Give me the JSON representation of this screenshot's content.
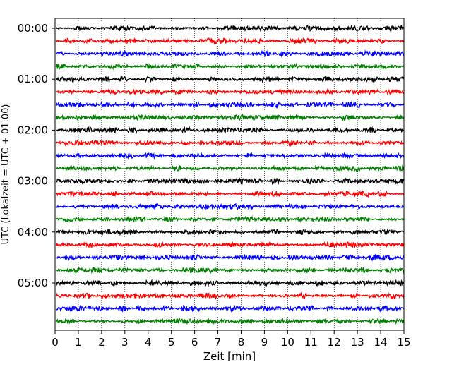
{
  "chart_data": {
    "type": "line",
    "title": "",
    "xlabel": "Zeit  [min]",
    "ylabel": "UTC (Lokalzeit = UTC + 01:00)",
    "xlim": [
      0,
      15
    ],
    "x_ticks": [
      "0",
      "1",
      "2",
      "3",
      "4",
      "5",
      "6",
      "7",
      "8",
      "9",
      "10",
      "11",
      "12",
      "13",
      "14",
      "15"
    ],
    "y_ticks": [
      "00:00",
      "01:00",
      "02:00",
      "03:00",
      "04:00",
      "05:00"
    ],
    "trace_interval_minutes": 15,
    "trace_count": 24,
    "trace_color_cycle": [
      "#000000",
      "#ff0000",
      "#0000ff",
      "#007f00"
    ],
    "series": [
      {
        "start": "00:00",
        "color": "#000000"
      },
      {
        "start": "00:15",
        "color": "#ff0000"
      },
      {
        "start": "00:30",
        "color": "#0000ff"
      },
      {
        "start": "00:45",
        "color": "#007f00"
      },
      {
        "start": "01:00",
        "color": "#000000"
      },
      {
        "start": "01:15",
        "color": "#ff0000"
      },
      {
        "start": "01:30",
        "color": "#0000ff"
      },
      {
        "start": "01:45",
        "color": "#007f00"
      },
      {
        "start": "02:00",
        "color": "#000000"
      },
      {
        "start": "02:15",
        "color": "#ff0000"
      },
      {
        "start": "02:30",
        "color": "#0000ff"
      },
      {
        "start": "02:45",
        "color": "#007f00"
      },
      {
        "start": "03:00",
        "color": "#000000"
      },
      {
        "start": "03:15",
        "color": "#ff0000"
      },
      {
        "start": "03:30",
        "color": "#0000ff"
      },
      {
        "start": "03:45",
        "color": "#007f00"
      },
      {
        "start": "04:00",
        "color": "#000000"
      },
      {
        "start": "04:15",
        "color": "#ff0000"
      },
      {
        "start": "04:30",
        "color": "#0000ff"
      },
      {
        "start": "04:45",
        "color": "#007f00"
      },
      {
        "start": "05:00",
        "color": "#000000"
      },
      {
        "start": "05:15",
        "color": "#ff0000"
      },
      {
        "start": "05:30",
        "color": "#0000ff"
      },
      {
        "start": "05:45",
        "color": "#007f00"
      }
    ],
    "grid": "vertical dotted lines at each minute"
  }
}
